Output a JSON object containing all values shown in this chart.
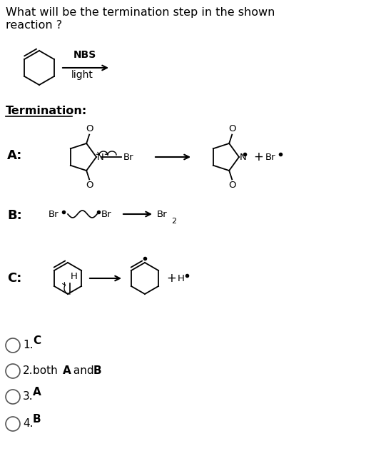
{
  "title_line1": "What will be the termination step in the shown",
  "title_line2": "reaction ?",
  "nbs_label": "NBS",
  "light_label": "light",
  "termination_label": "Termination:",
  "label_A": "A:",
  "label_B": "B:",
  "label_C": "C:",
  "bg_color": "#ffffff",
  "text_color": "#000000",
  "option_rows": [
    {
      "num": "1.",
      "letter": "C",
      "bold": true,
      "extra": ""
    },
    {
      "num": "2.",
      "letter": "both ",
      "bold": false,
      "extra": "A_and_B"
    },
    {
      "num": "3.",
      "letter": "A",
      "bold": true,
      "extra": ""
    },
    {
      "num": "4.",
      "letter": "B",
      "bold": true,
      "extra": ""
    }
  ]
}
